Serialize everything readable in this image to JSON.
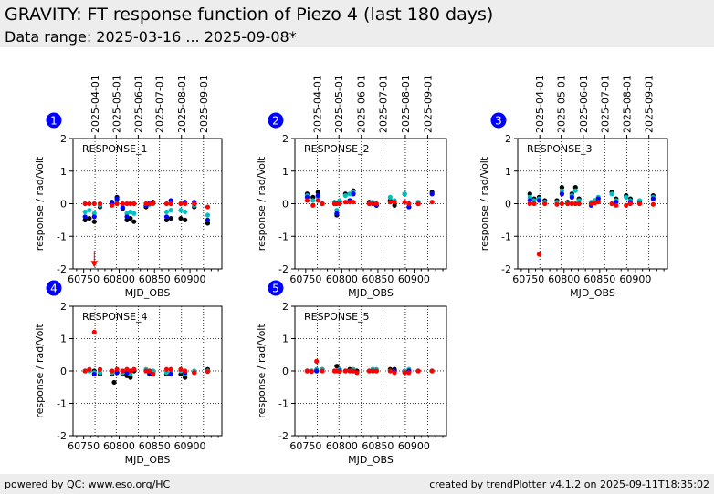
{
  "header": {
    "title": "GRAVITY: FT response function of Piezo 4 (last 180 days)",
    "subtitle": "Data range: 2025-03-16 ... 2025-09-08*"
  },
  "footer": {
    "left": "powered by QC: www.eso.org/HC",
    "right": "created by trendPlotter v4.1.2 on 2025-09-11T18:35:02"
  },
  "colors": {
    "black": "#000000",
    "cyan": "#00bfbf",
    "blue": "#0000ff",
    "red": "#ff0000",
    "badge": "#0000ff"
  },
  "shared": {
    "xlabel": "MJD_OBS",
    "ylabel": "response / rad/Volt",
    "xlim": [
      60735,
      60945
    ],
    "ylim": [
      -2,
      2
    ],
    "xticks": [
      60750,
      60800,
      60850,
      60900
    ],
    "xtick_labels": [
      "60750",
      "60800",
      "60850",
      "60900"
    ],
    "yticks": [
      -2,
      -1,
      0,
      1,
      2
    ],
    "ytick_labels": [
      "-2",
      "-1",
      "0",
      "1",
      "2"
    ],
    "date_ticks": [
      {
        "label": "2025-04-01",
        "mjd": 60766
      },
      {
        "label": "2025-05-01",
        "mjd": 60796
      },
      {
        "label": "2025-06-01",
        "mjd": 60827
      },
      {
        "label": "2025-07-01",
        "mjd": 60857
      },
      {
        "label": "2025-08-01",
        "mjd": 60888
      },
      {
        "label": "2025-09-01",
        "mjd": 60919
      }
    ]
  },
  "chart_data": [
    {
      "type": "scatter",
      "number": "1",
      "label": "RESPONSE_1",
      "show_date_axis": true,
      "series": [
        {
          "color": "black",
          "x": [
            60752,
            60758,
            60765,
            60773,
            60790,
            60797,
            60805,
            60811,
            60816,
            60821,
            60838,
            60843,
            60848,
            60867,
            60873,
            60887,
            60893,
            60906,
            60925
          ],
          "y": [
            -0.5,
            -0.45,
            -0.55,
            -0.1,
            0.05,
            0.2,
            -0.15,
            -0.5,
            -0.45,
            -0.55,
            -0.1,
            0.0,
            0.05,
            -0.5,
            -0.45,
            -0.45,
            -0.5,
            -0.1,
            -0.6
          ]
        },
        {
          "color": "cyan",
          "x": [
            60752,
            60758,
            60765,
            60773,
            60790,
            60797,
            60805,
            60811,
            60816,
            60821,
            60838,
            60843,
            60848,
            60867,
            60873,
            60887,
            60893,
            60906,
            60925
          ],
          "y": [
            -0.25,
            -0.2,
            -0.3,
            -0.05,
            0.0,
            0.1,
            -0.1,
            -0.3,
            -0.25,
            -0.3,
            -0.05,
            -0.02,
            0.0,
            -0.25,
            -0.2,
            -0.2,
            -0.25,
            -0.05,
            -0.35
          ]
        },
        {
          "color": "blue",
          "x": [
            60752,
            60765,
            60790,
            60797,
            60805,
            60811,
            60838,
            60843,
            60867,
            60873,
            60893,
            60906,
            60925
          ],
          "y": [
            -0.4,
            -0.4,
            0.02,
            0.15,
            -0.12,
            -0.4,
            -0.05,
            0.02,
            -0.4,
            0.1,
            0.05,
            0.05,
            -0.5
          ]
        },
        {
          "color": "red",
          "x": [
            60752,
            60758,
            60765,
            60773,
            60790,
            60797,
            60805,
            60811,
            60816,
            60821,
            60838,
            60843,
            60848,
            60867,
            60873,
            60887,
            60893,
            60906,
            60925
          ],
          "y": [
            0.0,
            0.0,
            0.0,
            0.0,
            -0.05,
            0.0,
            0.0,
            0.0,
            0.0,
            0.0,
            0.0,
            0.0,
            0.02,
            0.0,
            0.0,
            0.0,
            0.0,
            0.0,
            -0.1
          ]
        }
      ],
      "arrow": {
        "x": 60765,
        "y_from": -1.45,
        "y_to": -1.95
      }
    },
    {
      "type": "scatter",
      "number": "2",
      "label": "RESPONSE_2",
      "show_date_axis": true,
      "series": [
        {
          "color": "black",
          "x": [
            60752,
            60760,
            60767,
            60773,
            60790,
            60793,
            60797,
            60805,
            60811,
            60816,
            60838,
            60843,
            60848,
            60867,
            60873,
            60887,
            60893,
            60906,
            60925
          ],
          "y": [
            0.3,
            0.2,
            0.35,
            0.0,
            0.0,
            -0.35,
            0.05,
            0.3,
            0.1,
            0.4,
            0.05,
            0.0,
            -0.05,
            0.1,
            -0.05,
            0.3,
            -0.1,
            0.0,
            0.35
          ]
        },
        {
          "color": "cyan",
          "x": [
            60752,
            60760,
            60767,
            60773,
            60790,
            60793,
            60797,
            60805,
            60811,
            60816,
            60838,
            60843,
            60848,
            60867,
            60873,
            60887,
            60893,
            60906,
            60925
          ],
          "y": [
            0.25,
            0.1,
            0.2,
            0.0,
            0.05,
            -0.2,
            0.1,
            0.25,
            0.3,
            0.35,
            0.0,
            0.05,
            0.0,
            0.2,
            0.1,
            0.3,
            0.0,
            0.05,
            0.3
          ]
        },
        {
          "color": "blue",
          "x": [
            60752,
            60767,
            60793,
            60811,
            60816,
            60848,
            60893,
            60925
          ],
          "y": [
            0.2,
            0.25,
            -0.3,
            0.1,
            0.3,
            -0.05,
            -0.1,
            0.3
          ]
        },
        {
          "color": "red",
          "x": [
            60752,
            60760,
            60767,
            60773,
            60790,
            60793,
            60797,
            60805,
            60811,
            60816,
            60838,
            60843,
            60848,
            60867,
            60873,
            60887,
            60893,
            60906,
            60925
          ],
          "y": [
            0.1,
            -0.05,
            0.1,
            0.0,
            0.0,
            0.0,
            0.0,
            0.05,
            0.05,
            0.05,
            0.0,
            0.0,
            0.0,
            0.05,
            0.05,
            0.05,
            0.0,
            0.0,
            0.05
          ]
        }
      ]
    },
    {
      "type": "scatter",
      "number": "3",
      "label": "RESPONSE_3",
      "show_date_axis": true,
      "series": [
        {
          "color": "black",
          "x": [
            60752,
            60758,
            60765,
            60773,
            60790,
            60797,
            60805,
            60811,
            60816,
            60821,
            60838,
            60843,
            60848,
            60867,
            60873,
            60887,
            60893,
            60906,
            60925
          ],
          "y": [
            0.3,
            0.15,
            0.2,
            0.1,
            0.1,
            0.5,
            0.05,
            0.3,
            0.5,
            0.15,
            0.0,
            0.1,
            0.15,
            0.35,
            0.15,
            0.25,
            0.15,
            0.05,
            0.25
          ]
        },
        {
          "color": "cyan",
          "x": [
            60752,
            60758,
            60765,
            60773,
            60790,
            60797,
            60805,
            60811,
            60816,
            60821,
            60838,
            60843,
            60848,
            60867,
            60873,
            60887,
            60893,
            60906,
            60925
          ],
          "y": [
            0.2,
            0.1,
            0.15,
            0.05,
            0.05,
            0.4,
            0.02,
            0.25,
            0.4,
            0.1,
            0.05,
            0.1,
            0.2,
            0.3,
            0.1,
            0.2,
            0.1,
            0.1,
            0.2
          ]
        },
        {
          "color": "blue",
          "x": [
            60752,
            60765,
            60797,
            60811,
            60838,
            60848,
            60873,
            60893,
            60925
          ],
          "y": [
            0.1,
            0.1,
            0.3,
            0.2,
            -0.05,
            0.15,
            0.05,
            0.05,
            0.15
          ]
        },
        {
          "color": "red",
          "x": [
            60752,
            60758,
            60765,
            60773,
            60790,
            60797,
            60805,
            60811,
            60816,
            60821,
            60838,
            60843,
            60848,
            60867,
            60873,
            60887,
            60893,
            60906,
            60925
          ],
          "y": [
            0.0,
            0.0,
            -1.55,
            0.0,
            -0.02,
            0.0,
            0.0,
            0.0,
            0.0,
            0.0,
            0.0,
            0.02,
            0.05,
            0.0,
            -0.05,
            -0.05,
            0.0,
            0.0,
            -0.02
          ]
        }
      ]
    },
    {
      "type": "scatter",
      "number": "4",
      "label": "RESPONSE_4",
      "show_date_axis": false,
      "series": [
        {
          "color": "black",
          "x": [
            60752,
            60758,
            60765,
            60773,
            60790,
            60793,
            60797,
            60805,
            60811,
            60816,
            60821,
            60838,
            60843,
            60848,
            60867,
            60873,
            60887,
            60893,
            60906,
            60925
          ],
          "y": [
            0.0,
            0.0,
            0.0,
            -0.1,
            -0.1,
            -0.35,
            -0.05,
            -0.1,
            -0.15,
            -0.2,
            0.0,
            0.0,
            -0.1,
            -0.05,
            -0.1,
            -0.1,
            -0.1,
            -0.2,
            -0.05,
            0.05
          ]
        },
        {
          "color": "cyan",
          "x": [
            60752,
            60758,
            60765,
            60773,
            60790,
            60797,
            60805,
            60811,
            60816,
            60838,
            60843,
            60848,
            60867,
            60873,
            60887,
            60893,
            60906,
            60925
          ],
          "y": [
            0.0,
            0.0,
            -0.05,
            -0.05,
            -0.05,
            0.0,
            -0.05,
            -0.05,
            -0.1,
            0.05,
            0.0,
            0.0,
            -0.05,
            -0.05,
            0.0,
            -0.1,
            0.0,
            0.0
          ]
        },
        {
          "color": "blue",
          "x": [
            60765,
            60797,
            60811,
            60843,
            60873,
            60893
          ],
          "y": [
            -0.1,
            -0.05,
            -0.05,
            -0.05,
            -0.1,
            -0.05
          ]
        },
        {
          "color": "red",
          "x": [
            60752,
            60758,
            60765,
            60773,
            60790,
            60797,
            60805,
            60811,
            60816,
            60821,
            60838,
            60843,
            60848,
            60867,
            60873,
            60887,
            60893,
            60906,
            60925
          ],
          "y": [
            0.0,
            0.05,
            1.2,
            0.05,
            0.0,
            0.05,
            0.0,
            0.05,
            0.0,
            0.05,
            0.0,
            0.0,
            -0.1,
            0.05,
            0.05,
            0.05,
            0.0,
            -0.05,
            -0.02
          ]
        }
      ]
    },
    {
      "type": "scatter",
      "number": "5",
      "label": "RESPONSE_5",
      "show_date_axis": false,
      "series": [
        {
          "color": "black",
          "x": [
            60752,
            60758,
            60765,
            60773,
            60790,
            60793,
            60797,
            60805,
            60811,
            60816,
            60821,
            60838,
            60843,
            60848,
            60867,
            60873,
            60887,
            60893,
            60906,
            60925
          ],
          "y": [
            0.0,
            0.0,
            0.0,
            0.05,
            0.0,
            0.15,
            0.05,
            0.0,
            0.05,
            0.0,
            0.0,
            0.0,
            0.05,
            0.0,
            0.05,
            0.05,
            0.0,
            0.0,
            0.0,
            0.0
          ]
        },
        {
          "color": "cyan",
          "x": [
            60752,
            60758,
            60765,
            60773,
            60790,
            60797,
            60805,
            60811,
            60816,
            60838,
            60843,
            60848,
            60867,
            60873,
            60887,
            60893,
            60906,
            60925
          ],
          "y": [
            0.0,
            0.0,
            0.05,
            0.05,
            0.0,
            0.05,
            0.0,
            0.0,
            0.05,
            0.0,
            0.05,
            0.05,
            0.0,
            0.0,
            0.0,
            0.05,
            0.0,
            0.0
          ]
        },
        {
          "color": "blue",
          "x": [
            60765,
            60797,
            60811,
            60843,
            60873,
            60893
          ],
          "y": [
            0.0,
            0.0,
            0.0,
            0.0,
            0.0,
            0.0
          ]
        },
        {
          "color": "red",
          "x": [
            60752,
            60758,
            60765,
            60773,
            60790,
            60793,
            60797,
            60805,
            60811,
            60816,
            60821,
            60838,
            60843,
            60848,
            60867,
            60873,
            60887,
            60893,
            60906,
            60925
          ],
          "y": [
            0.0,
            -0.02,
            0.3,
            0.0,
            0.0,
            0.0,
            -0.02,
            0.0,
            0.0,
            0.0,
            -0.05,
            0.0,
            0.0,
            0.0,
            0.0,
            -0.05,
            -0.05,
            -0.05,
            0.0,
            0.0
          ]
        }
      ]
    }
  ]
}
